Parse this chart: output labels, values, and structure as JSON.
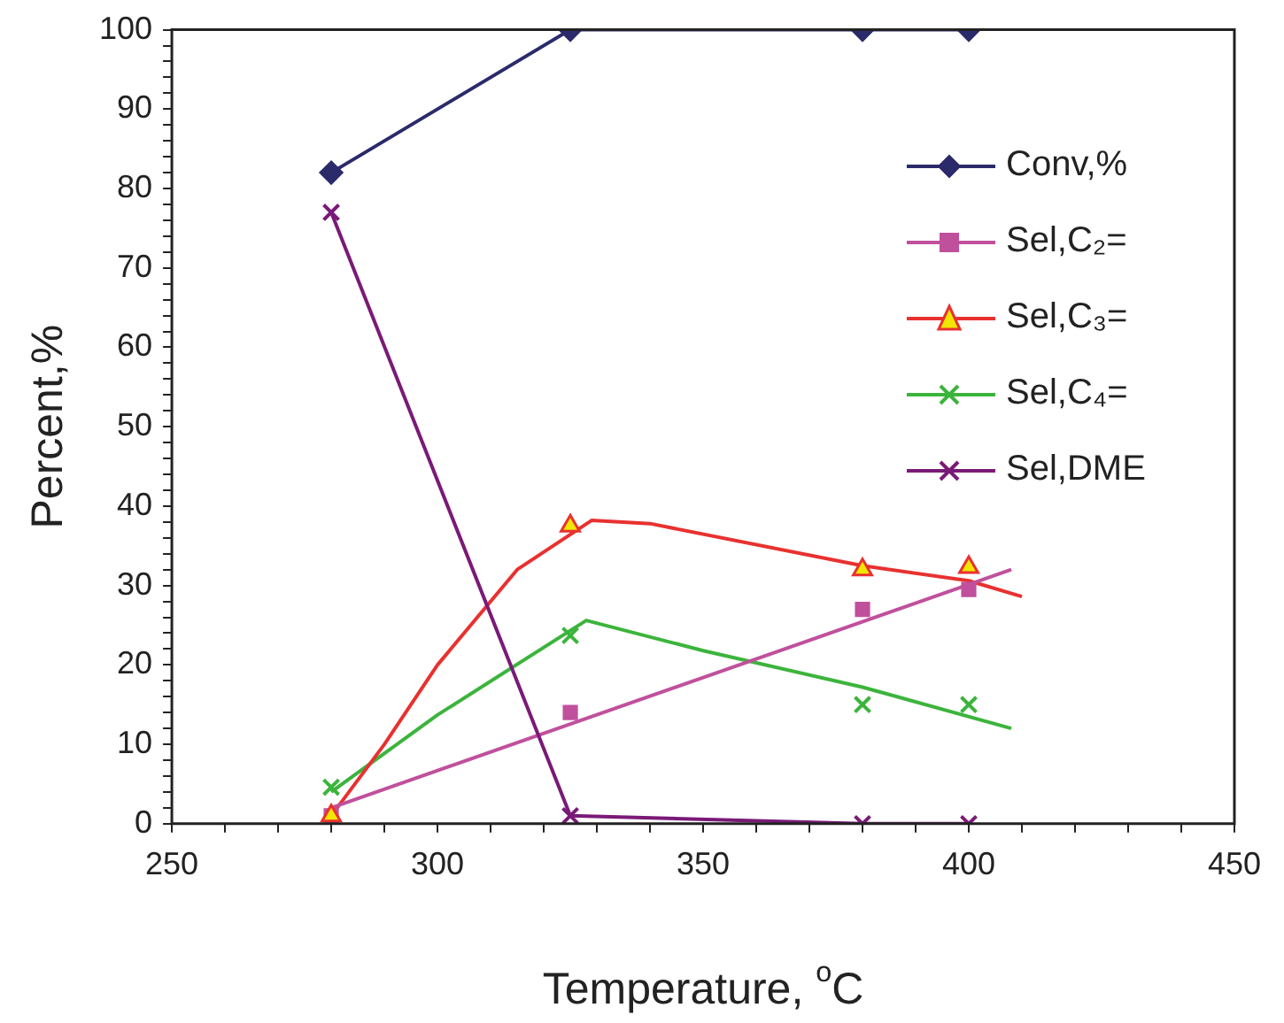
{
  "chart_data": {
    "type": "line",
    "xlabel": "Temperature, $^{o}$C",
    "ylabel": "Percent,%",
    "xlim": [
      250,
      450
    ],
    "xticks": [
      250,
      {
        "value": 260,
        "label": null
      },
      {
        "value": 270,
        "label": null
      },
      {
        "value": 280,
        "label": null
      },
      {
        "value": 290,
        "label": null
      },
      300,
      {
        "value": 310,
        "label": null
      },
      {
        "value": 320,
        "label": null
      },
      {
        "value": 330,
        "label": null
      },
      {
        "value": 340,
        "label": null
      },
      350,
      {
        "value": 360,
        "label": null
      },
      {
        "value": 370,
        "label": null
      },
      {
        "value": 380,
        "label": null
      },
      {
        "value": 390,
        "label": null
      },
      400,
      {
        "value": 410,
        "label": null
      },
      {
        "value": 420,
        "label": null
      },
      {
        "value": 430,
        "label": null
      },
      {
        "value": 440,
        "label": null
      },
      450
    ],
    "ylim": [
      0,
      100
    ],
    "yticks": [
      0,
      {
        "value": 2,
        "label": null
      },
      {
        "value": 4,
        "label": null
      },
      {
        "value": 6,
        "label": null
      },
      {
        "value": 8,
        "label": null
      },
      10,
      {
        "value": 12,
        "label": null
      },
      {
        "value": 14,
        "label": null
      },
      {
        "value": 16,
        "label": null
      },
      {
        "value": 18,
        "label": null
      },
      20,
      {
        "value": 22,
        "label": null
      },
      {
        "value": 24,
        "label": null
      },
      {
        "value": 26,
        "label": null
      },
      {
        "value": 28,
        "label": null
      },
      30,
      {
        "value": 32,
        "label": null
      },
      {
        "value": 34,
        "label": null
      },
      {
        "value": 36,
        "label": null
      },
      {
        "value": 38,
        "label": null
      },
      40,
      {
        "value": 42,
        "label": null
      },
      {
        "value": 44,
        "label": null
      },
      {
        "value": 46,
        "label": null
      },
      {
        "value": 48,
        "label": null
      },
      50,
      {
        "value": 52,
        "label": null
      },
      {
        "value": 54,
        "label": null
      },
      {
        "value": 56,
        "label": null
      },
      {
        "value": 58,
        "label": null
      },
      60,
      {
        "value": 62,
        "label": null
      },
      {
        "value": 64,
        "label": null
      },
      {
        "value": 66,
        "label": null
      },
      {
        "value": 68,
        "label": null
      },
      70,
      {
        "value": 72,
        "label": null
      },
      {
        "value": 74,
        "label": null
      },
      {
        "value": 76,
        "label": null
      },
      {
        "value": 78,
        "label": null
      },
      80,
      {
        "value": 82,
        "label": null
      },
      {
        "value": 84,
        "label": null
      },
      {
        "value": 86,
        "label": null
      },
      {
        "value": 88,
        "label": null
      },
      90,
      {
        "value": 92,
        "label": null
      },
      {
        "value": 94,
        "label": null
      },
      {
        "value": 96,
        "label": null
      },
      {
        "value": 98,
        "label": null
      },
      100
    ],
    "grid": false,
    "legend": "right",
    "series": [
      {
        "name": "Conv,%",
        "marker": "diamond",
        "color": "#2b2a6b",
        "x": [
          280,
          325,
          380,
          400
        ],
        "values": [
          82,
          100,
          100,
          100
        ]
      },
      {
        "name": "Sel,C₂=",
        "type": "scatter",
        "marker": "square",
        "color": "#c0509c",
        "x": [
          280,
          325,
          380,
          400
        ],
        "values": [
          1,
          14,
          27,
          29.5
        ]
      },
      {
        "name": "Sel,C₃=",
        "type": "scatter",
        "marker": "triangle",
        "color": "#e8312f",
        "x": [
          280,
          325,
          380,
          400
        ],
        "values": [
          1,
          37.5,
          32,
          32.3
        ]
      },
      {
        "name": "Sel,C₄=",
        "type": "scatter",
        "marker": "cross",
        "color": "#3cb43c",
        "x": [
          280,
          325,
          380,
          400
        ],
        "values": [
          4.6,
          23.7,
          15,
          15
        ]
      },
      {
        "name": "Sel,DME",
        "marker": "cross",
        "color": "#7a1a78",
        "x": [
          280,
          325,
          380,
          400
        ],
        "values": [
          77,
          1,
          0,
          0
        ]
      },
      {
        "marker": "none",
        "color": "#c0509c",
        "x": [
          280,
          408
        ],
        "values": [
          2,
          32
        ]
      },
      {
        "marker": "none",
        "color": "#e8312f",
        "x": [
          280,
          290,
          300,
          315,
          329,
          340,
          380,
          400,
          410
        ],
        "values": [
          1,
          10,
          20,
          32,
          38.2,
          37.8,
          32.5,
          30.6,
          28.6
        ]
      },
      {
        "marker": "none",
        "color": "#3cb43c",
        "x": [
          280,
          300,
          328,
          350,
          380,
          408
        ],
        "values": [
          4,
          13.7,
          25.6,
          21.8,
          17.2,
          12
        ]
      }
    ]
  }
}
